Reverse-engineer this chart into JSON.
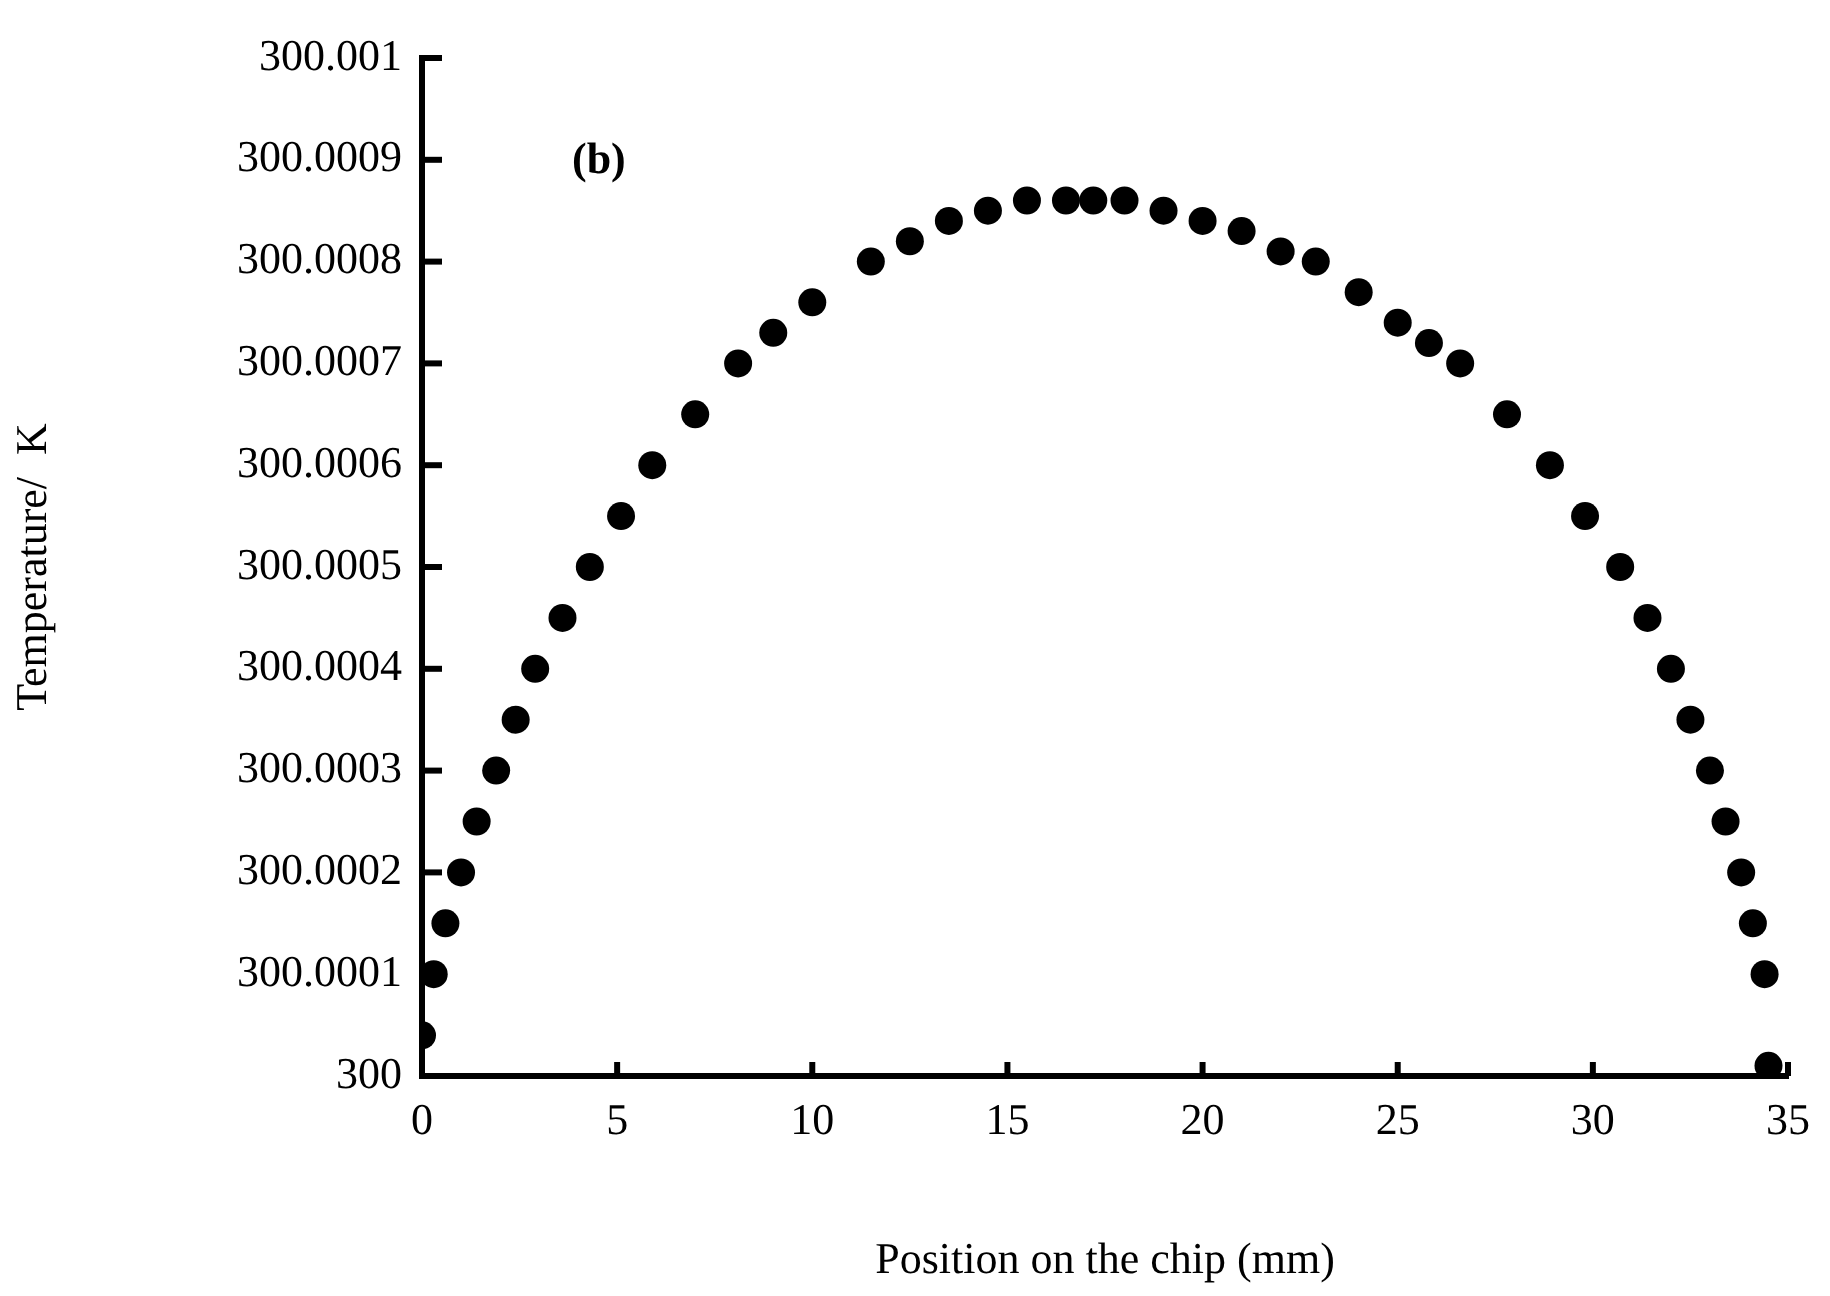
{
  "chart_data": {
    "type": "scatter",
    "xlabel": "Position on the chip (mm)",
    "ylabel": "Temperature/  K",
    "annotations": [
      "(b)"
    ],
    "xlim": [
      0,
      35
    ],
    "xticks": [
      0,
      5,
      10,
      15,
      20,
      25,
      30,
      35
    ],
    "ylim": [
      300,
      300.001
    ],
    "yticks": [
      300,
      300.0001,
      300.0002,
      300.0003,
      300.0004,
      300.0005,
      300.0006,
      300.0007,
      300.0008,
      300.0009,
      300.001
    ],
    "grid": false,
    "legend": false,
    "marker": "circle",
    "series": [
      {
        "color": "#000000",
        "x": [
          0,
          0.3,
          0.6,
          1.0,
          1.4,
          1.9,
          2.4,
          2.9,
          3.6,
          4.3,
          5.1,
          5.9,
          7.0,
          8.1,
          9.0,
          10.0,
          11.5,
          12.5,
          13.5,
          14.5,
          15.5,
          16.5,
          17.2,
          18.0,
          19.0,
          20.0,
          21.0,
          22.0,
          22.9,
          24.0,
          25.0,
          25.8,
          26.6,
          27.8,
          28.9,
          29.8,
          30.7,
          31.4,
          32.0,
          32.5,
          33.0,
          33.4,
          33.8,
          34.1,
          34.4,
          34.5
        ],
        "values": [
          300.00004,
          300.0001,
          300.00015,
          300.0002,
          300.00025,
          300.0003,
          300.00035,
          300.0004,
          300.00045,
          300.0005,
          300.00055,
          300.0006,
          300.00065,
          300.0007,
          300.00073,
          300.00076,
          300.0008,
          300.00082,
          300.00084,
          300.00085,
          300.00086,
          300.00086,
          300.00086,
          300.00086,
          300.00085,
          300.00084,
          300.00083,
          300.00081,
          300.0008,
          300.00077,
          300.00074,
          300.00072,
          300.0007,
          300.00065,
          300.0006,
          300.00055,
          300.0005,
          300.00045,
          300.0004,
          300.00035,
          300.0003,
          300.00025,
          300.0002,
          300.00015,
          300.0001,
          300.00001
        ]
      }
    ]
  }
}
